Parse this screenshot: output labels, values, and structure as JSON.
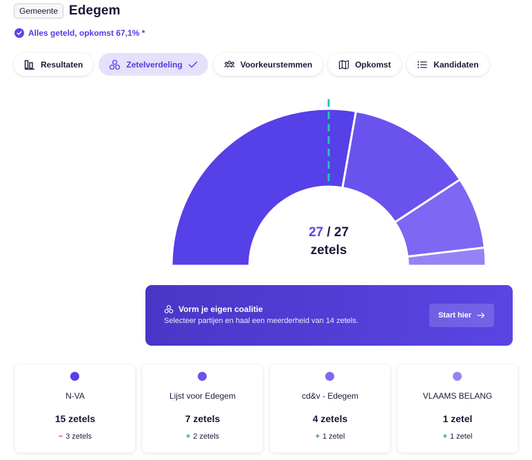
{
  "header": {
    "type_badge": "Gemeente",
    "title": "Edegem"
  },
  "status": {
    "text": "Alles geteld, opkomst 67,1% *",
    "icon": "check-circle-icon"
  },
  "tabs": [
    {
      "label": "Resultaten",
      "icon": "bar-chart-icon",
      "active": false
    },
    {
      "label": "Zetelverdeling",
      "icon": "circles-icon",
      "active": true
    },
    {
      "label": "Voorkeurstemmen",
      "icon": "people-icon",
      "active": false
    },
    {
      "label": "Opkomst",
      "icon": "map-icon",
      "active": false
    },
    {
      "label": "Kandidaten",
      "icon": "list-icon",
      "active": false
    }
  ],
  "seats": {
    "filled": "27",
    "total": "27",
    "unit": "zetels",
    "majority_line_color": "#20c7b4"
  },
  "chart_data": {
    "type": "pie",
    "style": "half-donut",
    "categories": [
      "N-VA",
      "Lijst voor Edegem",
      "cd&v - Edegem",
      "VLAAMS BELANG"
    ],
    "values": [
      15,
      7,
      4,
      1
    ],
    "colors": [
      "#5640e7",
      "#6a52ef",
      "#7d67f3",
      "#9583f5"
    ],
    "total": 27,
    "majority": 14
  },
  "coalition": {
    "title": "Vorm je eigen coalitie",
    "subtitle": "Selecteer partijen en haal een meerderheid van 14 zetels.",
    "button": "Start hier"
  },
  "parties": [
    {
      "name": "N-VA",
      "seats": "15 zetels",
      "change_sign": "−",
      "change_dir": "down",
      "change": "3 zetels",
      "color": "#5640e7"
    },
    {
      "name": "Lijst voor Edegem",
      "seats": "7 zetels",
      "change_sign": "+",
      "change_dir": "up",
      "change": "2 zetels",
      "color": "#6a52ef"
    },
    {
      "name": "cd&v - Edegem",
      "seats": "4 zetels",
      "change_sign": "+",
      "change_dir": "up",
      "change": "1 zetel",
      "color": "#7d67f3"
    },
    {
      "name": "VLAAMS BELANG",
      "seats": "1 zetel",
      "change_sign": "+",
      "change_dir": "up",
      "change": "1 zetel",
      "color": "#9583f5"
    }
  ]
}
